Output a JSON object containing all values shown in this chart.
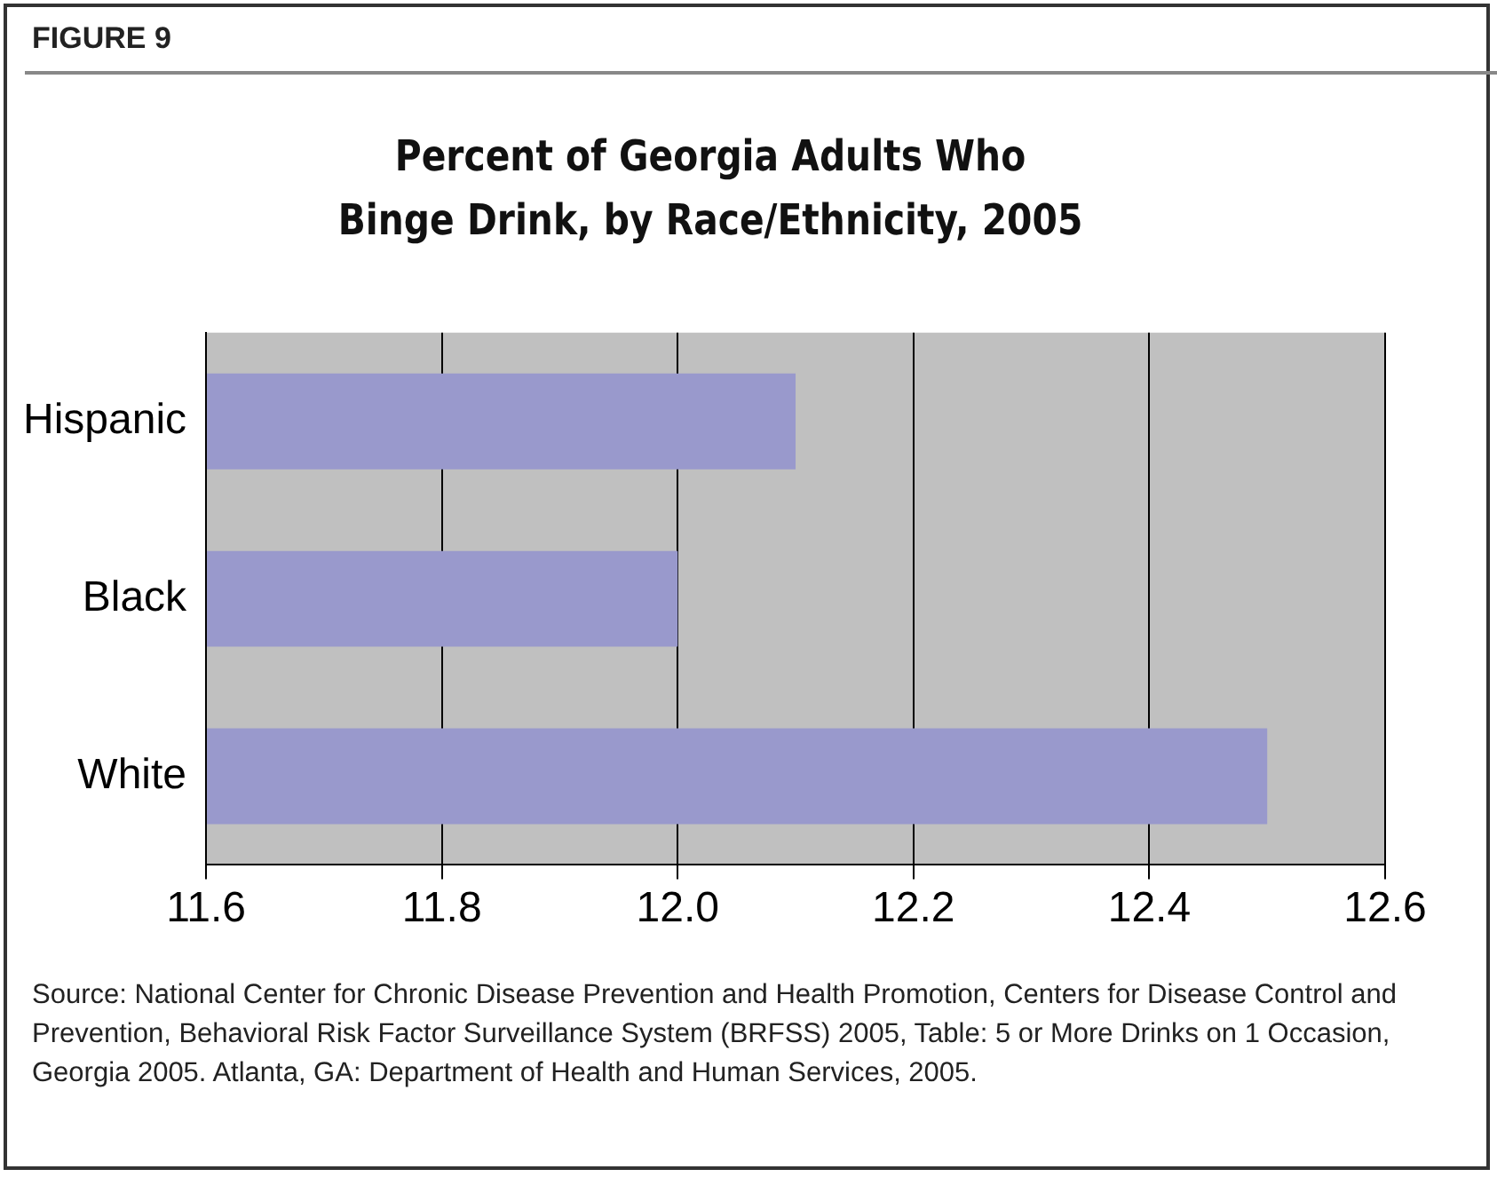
{
  "chart_data": {
    "type": "bar",
    "orientation": "horizontal",
    "title": "Percent of Georgia Adults Who Binge Drink, by Race/Ethnicity, 2005",
    "categories": [
      "Hispanic",
      "Black",
      "White"
    ],
    "values": [
      12.1,
      12.0,
      12.5
    ],
    "color": "#9999cc",
    "xlim": [
      11.6,
      12.6
    ],
    "xticks": [
      11.6,
      11.8,
      {
        "value": 12.0,
        "label": "12.0"
      },
      12.2,
      12.4,
      12.6
    ],
    "grid": "x",
    "legend": false,
    "annotations": [
      "FIGURE 9",
      "Source:  National Center for Chronic Disease Prevention and Health Promotion, Centers for Disease Control and Prevention, Behavioral Risk Factor Surveillance System (BRFSS) 2005, Table: 5 or More Drinks on 1 Occasion, Georgia 2005.  Atlanta, GA:  Department of Health and Human Services, 2005."
    ]
  }
}
